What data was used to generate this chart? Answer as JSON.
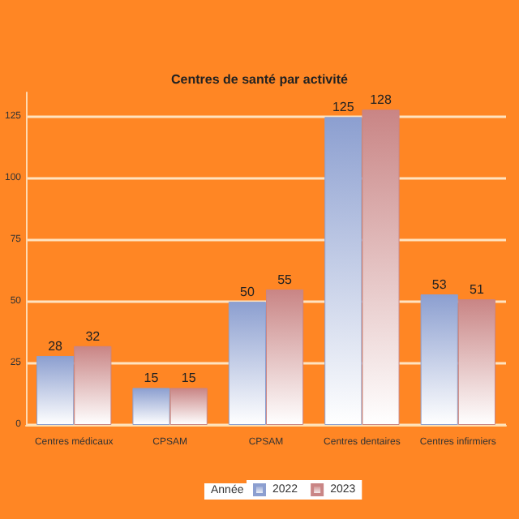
{
  "chart_data": {
    "type": "bar",
    "title": "Centres de santé par activité",
    "categories": [
      "Centres médicaux",
      "CPSAM",
      "CPSAM",
      "Centres dentaires",
      "Centres infirmiers"
    ],
    "series": [
      {
        "name": "2022",
        "color": "#8c9fd0",
        "values": [
          28,
          15,
          50,
          125,
          53
        ]
      },
      {
        "name": "2023",
        "color": "#c98585",
        "values": [
          32,
          15,
          55,
          128,
          51
        ]
      }
    ],
    "ylim": [
      0,
      135
    ],
    "yticks": [
      0,
      25,
      50,
      75,
      100,
      125
    ],
    "grid": "y",
    "legend": "bottom",
    "legend_title": "Année",
    "data_labels": true
  }
}
